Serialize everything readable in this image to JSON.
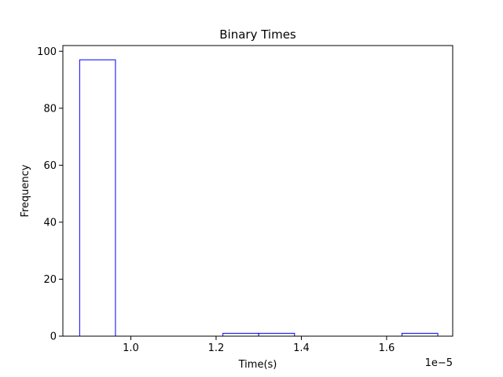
{
  "chart_data": {
    "type": "bar",
    "title": "Binary Times",
    "xlabel": "Time(s)",
    "ylabel": "Frequency",
    "x_offset_text": "1e−5",
    "x_scale_exponent": -5,
    "xlim": [
      8.8e-06,
      1.755e-05
    ],
    "ylim": [
      0,
      102
    ],
    "bin_edges": [
      8.8e-06,
      9.64e-06,
      1.048e-05,
      1.132e-05,
      1.216e-05,
      1.3e-05,
      1.384e-05,
      1.468e-05,
      1.552e-05,
      1.636e-05,
      1.72e-05
    ],
    "counts": [
      97,
      0,
      0,
      0,
      1,
      1,
      0,
      0,
      0,
      1
    ],
    "x_ticks": [
      {
        "value": 1e-05,
        "label": "1.0"
      },
      {
        "value": 1.2e-05,
        "label": "1.2"
      },
      {
        "value": 1.4e-05,
        "label": "1.4"
      },
      {
        "value": 1.6e-05,
        "label": "1.6"
      }
    ],
    "y_ticks": [
      {
        "value": 0,
        "label": "0"
      },
      {
        "value": 20,
        "label": "20"
      },
      {
        "value": 40,
        "label": "40"
      },
      {
        "value": 60,
        "label": "60"
      },
      {
        "value": 80,
        "label": "80"
      },
      {
        "value": 100,
        "label": "100"
      }
    ],
    "edge_color": "#0000ff",
    "fill_color": "#ffffff",
    "grid": false
  }
}
